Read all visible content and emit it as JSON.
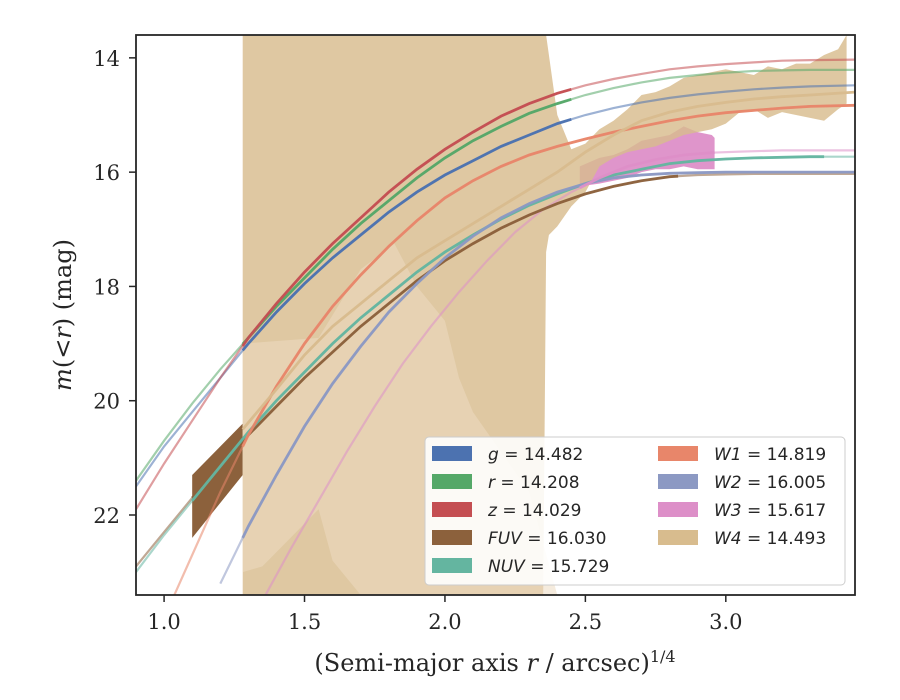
{
  "chart_data": {
    "type": "line",
    "xlabel": "(Semi-major axis r / arcsec)",
    "xlabel_exponent": "1/4",
    "ylabel": "m(<r) (mag)",
    "xlim": [
      0.9,
      3.46
    ],
    "ylim": [
      23.4,
      13.6
    ],
    "y_inverted": true,
    "grid": false,
    "legend_placement": "lower-right",
    "x_ticks": [
      {
        "value": 1.0,
        "label": "1.0"
      },
      {
        "value": 1.5,
        "label": "1.5"
      },
      {
        "value": 2.0,
        "label": "2.0"
      },
      {
        "value": 2.5,
        "label": "2.5"
      },
      {
        "value": 3.0,
        "label": "3.0"
      }
    ],
    "y_ticks": [
      {
        "value": 14,
        "label": "14"
      },
      {
        "value": 16,
        "label": "16"
      },
      {
        "value": 18,
        "label": "18"
      },
      {
        "value": 20,
        "label": "20"
      },
      {
        "value": 22,
        "label": "22"
      }
    ],
    "series": [
      {
        "band": "g",
        "legend_value": "14.482",
        "color": "#4c72b0",
        "data_x0": 1.28,
        "data_x1": 2.45,
        "x": [
          0.9,
          1.0,
          1.1,
          1.2,
          1.3,
          1.4,
          1.5,
          1.6,
          1.7,
          1.8,
          1.9,
          2.0,
          2.1,
          2.2,
          2.3,
          2.4,
          2.5,
          2.6,
          2.7,
          2.8,
          2.9,
          3.0,
          3.1,
          3.2,
          3.3,
          3.46
        ],
        "y": [
          21.5,
          20.8,
          20.2,
          19.6,
          19.0,
          18.45,
          17.95,
          17.5,
          17.1,
          16.7,
          16.35,
          16.05,
          15.8,
          15.55,
          15.35,
          15.15,
          15.0,
          14.88,
          14.78,
          14.7,
          14.64,
          14.59,
          14.55,
          14.52,
          14.5,
          14.48
        ]
      },
      {
        "band": "r",
        "legend_value": "14.208",
        "color": "#55a868",
        "data_x0": 1.28,
        "data_x1": 2.45,
        "x": [
          0.9,
          1.0,
          1.1,
          1.2,
          1.3,
          1.4,
          1.5,
          1.6,
          1.7,
          1.8,
          1.9,
          2.0,
          2.1,
          2.2,
          2.3,
          2.4,
          2.5,
          2.6,
          2.7,
          2.8,
          2.9,
          3.0,
          3.1,
          3.2,
          3.3,
          3.46
        ],
        "y": [
          21.4,
          20.7,
          20.05,
          19.45,
          18.9,
          18.35,
          17.85,
          17.35,
          16.9,
          16.5,
          16.1,
          15.75,
          15.45,
          15.2,
          14.97,
          14.8,
          14.65,
          14.53,
          14.43,
          14.35,
          14.3,
          14.26,
          14.23,
          14.22,
          14.21,
          14.21
        ]
      },
      {
        "band": "z",
        "legend_value": "14.029",
        "color": "#c44e52",
        "data_x0": 1.28,
        "data_x1": 2.45,
        "x": [
          0.9,
          1.0,
          1.1,
          1.2,
          1.3,
          1.4,
          1.5,
          1.6,
          1.7,
          1.8,
          1.9,
          2.0,
          2.1,
          2.2,
          2.3,
          2.4,
          2.5,
          2.6,
          2.7,
          2.8,
          2.9,
          3.0,
          3.1,
          3.2,
          3.3,
          3.46
        ],
        "y": [
          21.9,
          21.1,
          20.35,
          19.6,
          18.9,
          18.3,
          17.75,
          17.25,
          16.8,
          16.35,
          15.95,
          15.6,
          15.3,
          15.02,
          14.8,
          14.62,
          14.48,
          14.37,
          14.28,
          14.2,
          14.15,
          14.11,
          14.08,
          14.05,
          14.04,
          14.03
        ]
      },
      {
        "band": "FUV",
        "legend_value": "16.030",
        "color": "#8c613c",
        "data_x0": 1.1,
        "data_x1": 2.83,
        "x": [
          0.9,
          1.0,
          1.1,
          1.2,
          1.3,
          1.4,
          1.5,
          1.6,
          1.7,
          1.8,
          1.9,
          2.0,
          2.1,
          2.2,
          2.3,
          2.4,
          2.5,
          2.6,
          2.7,
          2.8,
          2.9,
          3.0,
          3.1,
          3.2,
          3.3,
          3.46
        ],
        "y": [
          22.9,
          22.3,
          21.7,
          21.2,
          20.6,
          20.1,
          19.6,
          19.15,
          18.7,
          18.3,
          17.9,
          17.55,
          17.25,
          16.98,
          16.75,
          16.55,
          16.38,
          16.25,
          16.15,
          16.08,
          16.05,
          16.04,
          16.03,
          16.03,
          16.03,
          16.03
        ]
      },
      {
        "band": "NUV",
        "legend_value": "15.729",
        "color": "#64b5a0",
        "data_x0": 1.1,
        "data_x1": 3.35,
        "x": [
          0.9,
          1.0,
          1.1,
          1.2,
          1.3,
          1.4,
          1.5,
          1.6,
          1.7,
          1.8,
          1.9,
          2.0,
          2.1,
          2.2,
          2.3,
          2.4,
          2.5,
          2.6,
          2.7,
          2.8,
          2.9,
          3.0,
          3.1,
          3.2,
          3.3,
          3.46
        ],
        "y": [
          23.0,
          22.35,
          21.75,
          21.15,
          20.55,
          20.0,
          19.5,
          19.0,
          18.55,
          18.15,
          17.75,
          17.4,
          17.1,
          16.82,
          16.58,
          16.38,
          16.2,
          16.05,
          15.95,
          15.85,
          15.8,
          15.77,
          15.75,
          15.74,
          15.73,
          15.73
        ]
      },
      {
        "band": "W1",
        "legend_value": "14.819",
        "color": "#e8866a",
        "data_x0": 1.28,
        "data_x1": 3.46,
        "x": [
          1.0,
          1.1,
          1.2,
          1.3,
          1.4,
          1.5,
          1.6,
          1.7,
          1.8,
          1.9,
          2.0,
          2.1,
          2.2,
          2.3,
          2.4,
          2.5,
          2.6,
          2.7,
          2.8,
          2.9,
          3.0,
          3.1,
          3.2,
          3.3,
          3.46
        ],
        "y": [
          23.8,
          22.7,
          21.6,
          20.6,
          19.75,
          19.0,
          18.35,
          17.8,
          17.3,
          16.85,
          16.45,
          16.15,
          15.9,
          15.7,
          15.55,
          15.42,
          15.3,
          15.2,
          15.1,
          15.02,
          14.96,
          14.92,
          14.88,
          14.85,
          14.83
        ]
      },
      {
        "band": "W2",
        "legend_value": "16.005",
        "color": "#8c99c3",
        "data_x0": 1.28,
        "data_x1": 3.46,
        "x": [
          1.2,
          1.3,
          1.4,
          1.5,
          1.6,
          1.7,
          1.8,
          1.9,
          2.0,
          2.1,
          2.2,
          2.3,
          2.4,
          2.5,
          2.6,
          2.7,
          2.8,
          2.9,
          3.0,
          3.1,
          3.2,
          3.3,
          3.46
        ],
        "y": [
          23.2,
          22.2,
          21.3,
          20.45,
          19.7,
          19.05,
          18.45,
          17.95,
          17.5,
          17.12,
          16.8,
          16.55,
          16.35,
          16.2,
          16.1,
          16.05,
          16.02,
          16.01,
          16.0,
          16.0,
          16.0,
          16.0,
          16.0
        ]
      },
      {
        "band": "W3",
        "legend_value": "15.617",
        "color": "#dd8fc8",
        "data_x0": 2.48,
        "data_x1": 2.96,
        "x": [
          1.35,
          1.45,
          1.55,
          1.65,
          1.75,
          1.85,
          1.95,
          2.05,
          2.15,
          2.25,
          2.35,
          2.45,
          2.55,
          2.65,
          2.75,
          2.85,
          2.95,
          3.05,
          3.2,
          3.35,
          3.46
        ],
        "y": [
          23.5,
          22.6,
          21.75,
          20.9,
          20.1,
          19.35,
          18.7,
          18.1,
          17.55,
          17.05,
          16.65,
          16.35,
          16.1,
          15.9,
          15.78,
          15.7,
          15.66,
          15.64,
          15.62,
          15.62,
          15.62
        ]
      },
      {
        "band": "W4",
        "legend_value": "14.493",
        "color": "#d8bc8e",
        "data_x0": 1.28,
        "data_x1": 3.46,
        "x": [
          1.28,
          1.4,
          1.5,
          1.6,
          1.7,
          1.8,
          1.9,
          2.0,
          2.1,
          2.2,
          2.3,
          2.4,
          2.5,
          2.6,
          2.7,
          2.8,
          2.9,
          3.0,
          3.1,
          3.2,
          3.3,
          3.46
        ],
        "y": [
          20.5,
          19.8,
          19.2,
          18.7,
          18.3,
          17.9,
          17.5,
          17.2,
          16.9,
          16.6,
          16.3,
          16.0,
          15.65,
          15.35,
          15.1,
          14.95,
          14.85,
          14.78,
          14.72,
          14.68,
          14.65,
          14.6
        ]
      }
    ],
    "bands": [
      {
        "name": "FUV",
        "color": "#8c613c",
        "opacity": 1.0,
        "x": [
          1.1,
          1.28,
          1.28,
          1.1
        ],
        "y": [
          21.3,
          20.4,
          21.3,
          22.4
        ]
      },
      {
        "name": "W3",
        "color": "#dd8fc8",
        "opacity": 0.95,
        "x": [
          2.48,
          2.55,
          2.6,
          2.65,
          2.7,
          2.75,
          2.8,
          2.85,
          2.9,
          2.95,
          2.96,
          2.96,
          2.95,
          2.9,
          2.85,
          2.8,
          2.75,
          2.7,
          2.65,
          2.6,
          2.55,
          2.48
        ],
        "y": [
          15.9,
          15.75,
          15.7,
          15.6,
          15.45,
          15.4,
          15.35,
          15.2,
          15.3,
          15.35,
          15.4,
          15.95,
          15.95,
          15.95,
          15.9,
          15.95,
          15.95,
          16.0,
          16.1,
          16.15,
          16.2,
          16.25
        ]
      },
      {
        "name": "W4",
        "color": "#d8bc8e",
        "opacity": 0.82,
        "x": [
          1.28,
          1.28,
          1.5,
          1.8,
          2.0,
          2.1,
          2.2,
          2.3,
          2.34,
          2.36,
          2.4,
          2.45,
          2.5,
          2.55,
          2.6,
          2.65,
          2.7,
          2.75,
          2.8,
          2.85,
          2.9,
          2.95,
          3.0,
          3.05,
          3.1,
          3.15,
          3.2,
          3.25,
          3.3,
          3.35,
          3.4,
          3.43,
          3.43,
          3.4,
          3.35,
          3.3,
          3.25,
          3.2,
          3.15,
          3.1,
          3.05,
          3.0,
          2.95,
          2.9,
          2.85,
          2.8,
          2.75,
          2.7,
          2.65,
          2.6,
          2.55,
          2.5,
          2.45,
          2.4,
          2.37,
          2.36,
          2.35,
          2.3,
          2.25,
          2.2,
          2.1,
          2.0,
          1.9,
          1.83,
          1.75,
          1.6,
          1.52,
          1.42,
          1.28
        ],
        "y": [
          13.6,
          13.6,
          13.6,
          13.6,
          13.6,
          13.6,
          13.6,
          13.6,
          13.6,
          13.6,
          15.0,
          15.6,
          15.5,
          15.25,
          15.1,
          14.9,
          14.65,
          14.6,
          14.5,
          14.35,
          14.3,
          14.25,
          14.2,
          14.25,
          14.3,
          14.15,
          14.2,
          14.1,
          14.1,
          13.95,
          13.85,
          13.6,
          14.8,
          14.9,
          15.1,
          15.05,
          15.0,
          14.95,
          15.05,
          14.9,
          14.95,
          15.15,
          15.25,
          15.3,
          15.35,
          15.45,
          15.55,
          15.6,
          15.65,
          15.75,
          15.9,
          16.35,
          16.6,
          16.95,
          17.1,
          17.4,
          23.4,
          23.4,
          23.4,
          23.4,
          23.4,
          23.4,
          23.4,
          23.4,
          23.4,
          23.4,
          23.4,
          23.4,
          23.4
        ]
      },
      {
        "name": "W4-inner",
        "color": "#ecdbc1",
        "opacity": 0.55,
        "x": [
          1.28,
          1.55,
          1.7,
          1.82,
          1.9,
          2.0,
          2.05,
          2.1,
          2.2,
          2.3,
          2.4,
          2.3,
          2.2,
          2.1,
          2.0,
          1.9,
          1.8,
          1.7,
          1.6,
          1.55,
          1.45,
          1.35,
          1.28
        ],
        "y": [
          19.0,
          18.9,
          17.7,
          17.25,
          18.0,
          18.6,
          19.6,
          20.2,
          20.9,
          21.6,
          23.4,
          23.4,
          23.4,
          23.4,
          23.4,
          23.4,
          23.4,
          23.4,
          22.8,
          21.9,
          22.4,
          22.9,
          23.0
        ]
      }
    ],
    "legend": [
      {
        "prefix": "g",
        "value": "= 14.482",
        "color": "#4c72b0"
      },
      {
        "prefix": "r",
        "value": "= 14.208",
        "color": "#55a868"
      },
      {
        "prefix": "z",
        "value": "= 14.029",
        "color": "#c44e52"
      },
      {
        "prefix": "FUV",
        "value": "= 16.030",
        "color": "#8c613c"
      },
      {
        "prefix": "NUV",
        "value": "= 15.729",
        "color": "#64b5a0"
      },
      {
        "prefix": "W1",
        "value": "= 14.819",
        "color": "#e8866a"
      },
      {
        "prefix": "W2",
        "value": "= 16.005",
        "color": "#8c99c3"
      },
      {
        "prefix": "W3",
        "value": "= 15.617",
        "color": "#dd8fc8"
      },
      {
        "prefix": "W4",
        "value": "= 14.493",
        "color": "#d8bc8e"
      }
    ]
  }
}
